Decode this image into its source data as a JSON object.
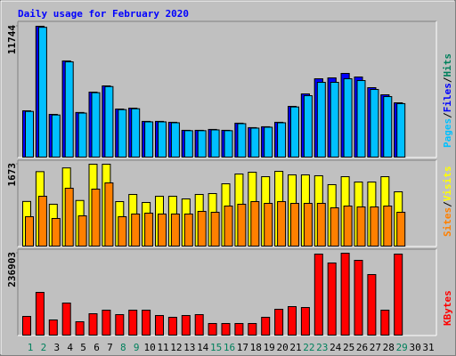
{
  "chart_data": {
    "type": "bar",
    "title": "Daily usage for February 2020",
    "title_color": "#0000ff",
    "legend_separator": "/",
    "categories": [
      "1",
      "2",
      "3",
      "4",
      "5",
      "6",
      "7",
      "8",
      "9",
      "10",
      "11",
      "12",
      "13",
      "14",
      "15",
      "16",
      "17",
      "18",
      "19",
      "20",
      "21",
      "22",
      "23",
      "24",
      "25",
      "26",
      "27",
      "28",
      "29",
      "30",
      "31"
    ],
    "category_colors": [
      "#00805c",
      "#00805c",
      "#000000",
      "#000000",
      "#000000",
      "#000000",
      "#000000",
      "#00805c",
      "#00805c",
      "#000000",
      "#000000",
      "#000000",
      "#000000",
      "#000000",
      "#00805c",
      "#00805c",
      "#000000",
      "#000000",
      "#000000",
      "#000000",
      "#000000",
      "#00805c",
      "#00805c",
      "#000000",
      "#000000",
      "#000000",
      "#000000",
      "#000000",
      "#00805c",
      "#000000",
      "#000000"
    ],
    "panels": [
      {
        "ylim": [
          0,
          11744
        ],
        "yticks": [
          11744
        ],
        "series": [
          {
            "name": "Hits",
            "color": "#00805c",
            "values": [
              4150,
              11744,
              3830,
              8630,
              4000,
              5830,
              6390,
              4310,
              4390,
              3200,
              3200,
              3120,
              2400,
              2400,
              2480,
              2400,
              3040,
              2640,
              2720,
              3120,
              4550,
              5670,
              7030,
              7110,
              7510,
              7190,
              6230,
              5590,
              4870,
              null,
              null
            ]
          },
          {
            "name": "Files",
            "color": "#0000ff",
            "values": [
              4150,
              11744,
              3830,
              8630,
              4000,
              5830,
              6390,
              4310,
              4390,
              3200,
              3200,
              3120,
              2400,
              2400,
              2480,
              2400,
              3040,
              2640,
              2720,
              3120,
              4550,
              5670,
              7030,
              7110,
              7510,
              7190,
              6230,
              5590,
              4870,
              null,
              null
            ]
          },
          {
            "name": "Pages",
            "color": "#00c0ff",
            "values": [
              4100,
              11650,
              3780,
              8550,
              3950,
              5780,
              6330,
              4260,
              4340,
              3160,
              3160,
              3080,
              2370,
              2370,
              2440,
              2370,
              3000,
              2600,
              2680,
              3080,
              4500,
              5510,
              6710,
              6710,
              7030,
              6870,
              6070,
              5430,
              4800,
              null,
              null
            ]
          }
        ]
      },
      {
        "ylim": [
          0,
          1673
        ],
        "yticks": [
          1673
        ],
        "series": [
          {
            "name": "Visits",
            "color": "#ffff00",
            "values": [
              912,
              1521,
              855,
              1597,
              932,
              1673,
              1673,
              909,
              1055,
              891,
              1018,
              1018,
              964,
              1055,
              1073,
              1273,
              1473,
              1509,
              1418,
              1527,
              1455,
              1455,
              1437,
              1255,
              1418,
              1309,
              1309,
              1418,
              1109,
              null,
              null
            ]
          },
          {
            "name": "Sites",
            "color": "#ff8000",
            "values": [
              600,
              1018,
              564,
              1182,
              618,
              1164,
              1291,
              600,
              655,
              673,
              655,
              655,
              655,
              709,
              691,
              818,
              855,
              909,
              873,
              909,
              873,
              873,
              873,
              782,
              818,
              800,
              800,
              818,
              691,
              null,
              null
            ]
          }
        ]
      },
      {
        "ylim": [
          0,
          236903
        ],
        "yticks": [
          236903
        ],
        "series": [
          {
            "name": "KBytes",
            "color": "#ff0000",
            "values": [
              54000,
              123600,
              43800,
              92700,
              38600,
              61800,
              72100,
              59200,
              72100,
              72100,
              56600,
              51500,
              56600,
              59200,
              33500,
              33500,
              33500,
              33500,
              51500,
              74700,
              82400,
              79800,
              234300,
              208600,
              236903,
              216300,
              175100,
              72100,
              234300,
              null,
              null
            ]
          }
        ]
      }
    ]
  }
}
